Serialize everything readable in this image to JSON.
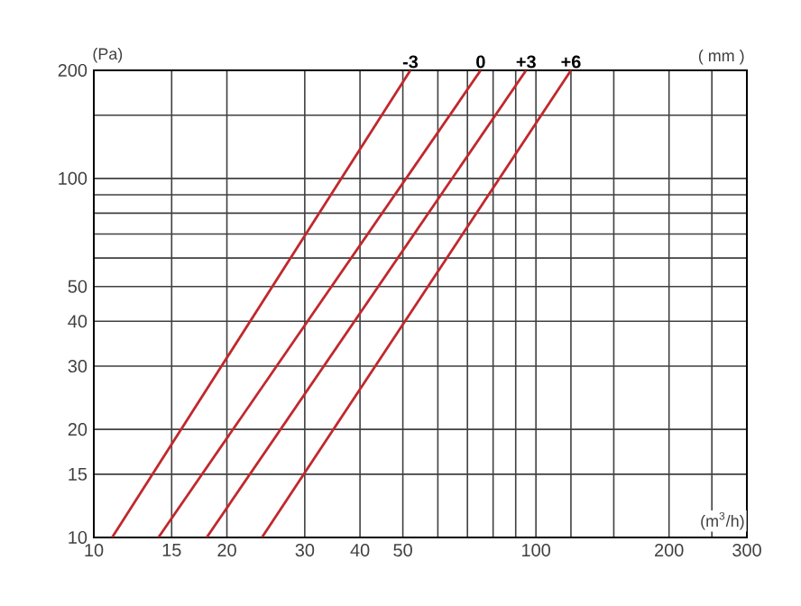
{
  "chart_data": {
    "type": "line",
    "xlabel": "(m$^{3}$/h)",
    "ylabel": "(Pa)",
    "legend_title": "( mm )",
    "log": "xy",
    "grid": true,
    "legend": false,
    "marker": "none",
    "line_style": "solid",
    "xlim": [
      10,
      300
    ],
    "ylim": [
      10,
      200
    ],
    "xticks": [
      10,
      15,
      20,
      30,
      40,
      50,
      {
        "value": 60,
        "label": null
      },
      {
        "value": 70,
        "label": null
      },
      {
        "value": 80,
        "label": null
      },
      {
        "value": 90,
        "label": null
      },
      100,
      {
        "value": 120,
        "label": null
      },
      {
        "value": 150,
        "label": null
      },
      200,
      {
        "value": 250,
        "label": null
      },
      300
    ],
    "yticks": [
      10,
      15,
      20,
      30,
      40,
      50,
      {
        "value": 60,
        "label": null
      },
      {
        "value": 70,
        "label": null
      },
      {
        "value": 80,
        "label": null
      },
      {
        "value": 90,
        "label": null
      },
      100,
      {
        "value": 150,
        "label": null
      },
      200
    ],
    "series": [
      {
        "name": "-3",
        "color": "#c0282d",
        "x": [
          11,
          52
        ],
        "values": [
          10,
          200
        ]
      },
      {
        "name": "0",
        "color": "#c0282d",
        "x": [
          14,
          75
        ],
        "values": [
          10,
          200
        ]
      },
      {
        "name": "+3",
        "color": "#c0282d",
        "x": [
          18,
          95
        ],
        "values": [
          10,
          200
        ]
      },
      {
        "name": "+6",
        "color": "#c0282d",
        "x": [
          24,
          120
        ],
        "values": [
          10,
          200
        ]
      }
    ]
  }
}
